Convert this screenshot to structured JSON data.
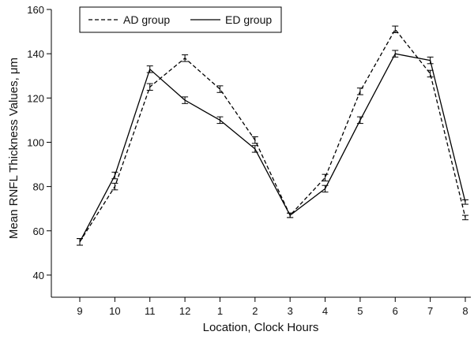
{
  "chart_data": {
    "type": "line",
    "title": "",
    "xlabel": "Location, Clock Hours",
    "ylabel": "Mean RNFL Thickness Values, μm",
    "categories": [
      "9",
      "10",
      "11",
      "12",
      "1",
      "2",
      "3",
      "4",
      "5",
      "6",
      "7",
      "8"
    ],
    "ylim": [
      30,
      160
    ],
    "yticks": [
      40,
      60,
      80,
      100,
      120,
      140,
      160
    ],
    "grid": false,
    "legend": "top-left",
    "series": [
      {
        "name": "AD group",
        "style": "dashed",
        "values": [
          55,
          80,
          125,
          138,
          124,
          101,
          67,
          84,
          123,
          151,
          131,
          66
        ],
        "error": [
          1.5,
          1.5,
          1.5,
          1.5,
          1.5,
          1.5,
          1,
          1.5,
          1.5,
          1.5,
          1.5,
          1
        ]
      },
      {
        "name": "ED group",
        "style": "solid",
        "values": [
          55,
          85,
          133,
          119,
          110,
          97,
          67,
          79,
          110,
          140,
          137,
          73
        ],
        "error": [
          1.5,
          1.5,
          1.5,
          1.5,
          1.5,
          1.5,
          1,
          1.5,
          1.5,
          1.5,
          1.5,
          1
        ]
      }
    ]
  }
}
